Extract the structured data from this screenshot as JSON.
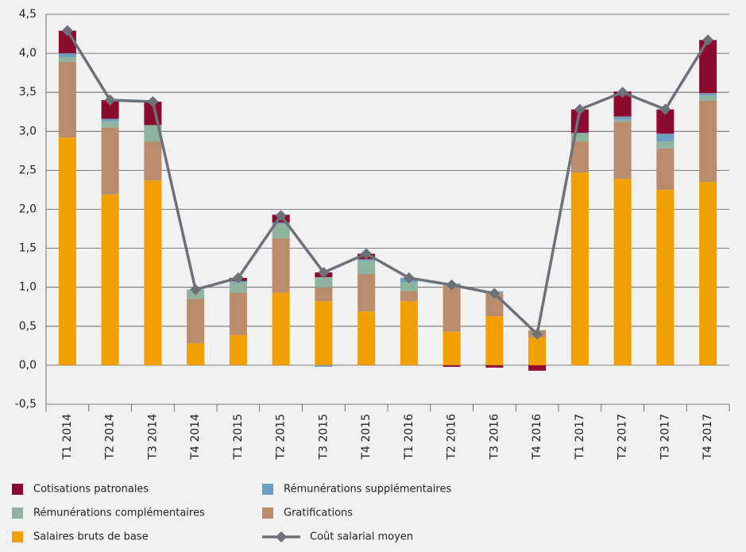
{
  "chart_data": {
    "type": "stacked-bar-line",
    "categories": [
      "T1 2014",
      "T2 2014",
      "T3 2014",
      "T4 2014",
      "T1 2015",
      "T2 2015",
      "T3 2015",
      "T4 2015",
      "T1 2016",
      "T2 2016",
      "T3 2016",
      "T4 2016",
      "T1 2017",
      "T2 2017",
      "T3 2017",
      "T4 2017"
    ],
    "series": [
      {
        "name": "Salaires bruts de base",
        "color": "#f0a000",
        "values": [
          2.92,
          2.19,
          2.37,
          0.28,
          0.39,
          0.93,
          0.82,
          0.69,
          0.82,
          0.43,
          0.63,
          0.36,
          2.47,
          2.39,
          2.25,
          2.35
        ]
      },
      {
        "name": "Gratifications",
        "color": "#b98c6e",
        "values": [
          0.97,
          0.86,
          0.5,
          0.57,
          0.54,
          0.7,
          0.18,
          0.48,
          0.13,
          0.59,
          0.29,
          0.09,
          0.4,
          0.73,
          0.53,
          1.04
        ]
      },
      {
        "name": "Rémunérations complémentaires",
        "color": "#8fb39e",
        "values": [
          0.06,
          0.08,
          0.21,
          0.12,
          0.13,
          0.18,
          0.13,
          0.17,
          0.11,
          0.02,
          0.02,
          0,
          0.1,
          0.03,
          0.09,
          0.07
        ]
      },
      {
        "name": "Rémunérations supplémentaires",
        "color": "#6f9fc0",
        "values": [
          0.05,
          0.03,
          0,
          0,
          0.02,
          0.02,
          -0.02,
          0.02,
          0.06,
          0.01,
          0.01,
          0,
          0.01,
          0.04,
          0.1,
          0.03
        ]
      },
      {
        "name": "Cotisations patronales",
        "color": "#8b0a2e",
        "values": [
          0.29,
          0.24,
          0.3,
          0,
          0.04,
          0.1,
          0.06,
          0.07,
          0,
          -0.02,
          -0.03,
          -0.07,
          0.3,
          0.32,
          0.31,
          0.68
        ]
      }
    ],
    "line": {
      "name": "Coût salarial moyen",
      "color": "#6d7278",
      "values": [
        4.29,
        3.4,
        3.38,
        0.97,
        1.12,
        1.92,
        1.19,
        1.43,
        1.12,
        1.03,
        0.92,
        0.4,
        3.28,
        3.5,
        3.28,
        4.17
      ]
    },
    "ylim": [
      -0.5,
      4.5
    ],
    "yticks": [
      {
        "value": -0.5,
        "label": "-0,5"
      },
      {
        "value": 0,
        "label": "0,0"
      },
      {
        "value": 0.5,
        "label": "0,5"
      },
      {
        "value": 1,
        "label": "1,0"
      },
      {
        "value": 1.5,
        "label": "1,5"
      },
      {
        "value": 2,
        "label": "2,0"
      },
      {
        "value": 2.5,
        "label": "2,5"
      },
      {
        "value": 3,
        "label": "3,0"
      },
      {
        "value": 3.5,
        "label": "3,5"
      },
      {
        "value": 4,
        "label": "4,0"
      },
      {
        "value": 4.5,
        "label": "4,5"
      }
    ],
    "grid": true
  }
}
